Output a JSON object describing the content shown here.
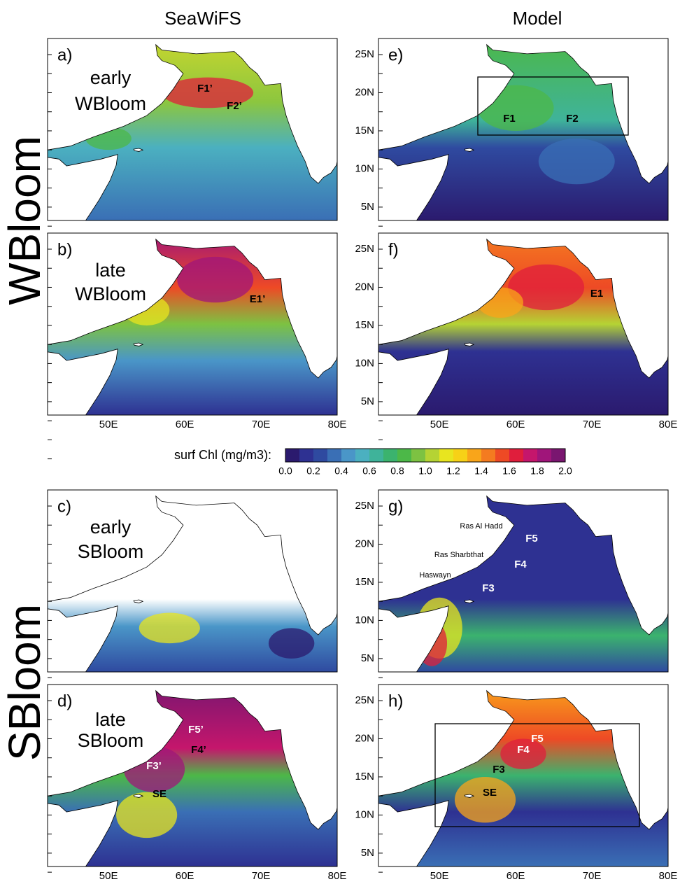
{
  "column_titles": [
    "SeaWiFS",
    "Model"
  ],
  "row_titles": [
    "WBloom",
    "SBloom"
  ],
  "x_ticks": [
    "50E",
    "60E",
    "70E",
    "80E"
  ],
  "y_ticks": [
    "25N",
    "20N",
    "15N",
    "10N",
    "5N"
  ],
  "colorbar": {
    "label": "surf Chl (mg/m3):",
    "ticks": [
      "0.0",
      "0.2",
      "0.4",
      "0.6",
      "0.8",
      "1.0",
      "1.2",
      "1.4",
      "1.6",
      "1.8",
      "2.0"
    ]
  },
  "panels": [
    {
      "label": "a)",
      "title": [
        "early",
        "WBloom"
      ],
      "annotations": [
        "F1’",
        "F2’"
      ]
    },
    {
      "label": "e)",
      "annotations": [
        "F1",
        "F2"
      ]
    },
    {
      "label": "b)",
      "title": [
        "late",
        "WBloom"
      ],
      "annotations": [
        "E1’"
      ]
    },
    {
      "label": "f)",
      "annotations": [
        "E1"
      ]
    },
    {
      "label": "c)",
      "title": [
        "early",
        "SBloom"
      ]
    },
    {
      "label": "g)",
      "annotations": [
        "Ras Al Hadd",
        "Ras Sharbthat",
        "Haswayn",
        "F5",
        "F4",
        "F3"
      ]
    },
    {
      "label": "d)",
      "title": [
        "late",
        "SBloom"
      ],
      "annotations": [
        "F5’",
        "F4’",
        "F3’",
        "SE"
      ]
    },
    {
      "label": "h)",
      "annotations": [
        "F5",
        "F4",
        "F3",
        "SE"
      ]
    }
  ]
}
